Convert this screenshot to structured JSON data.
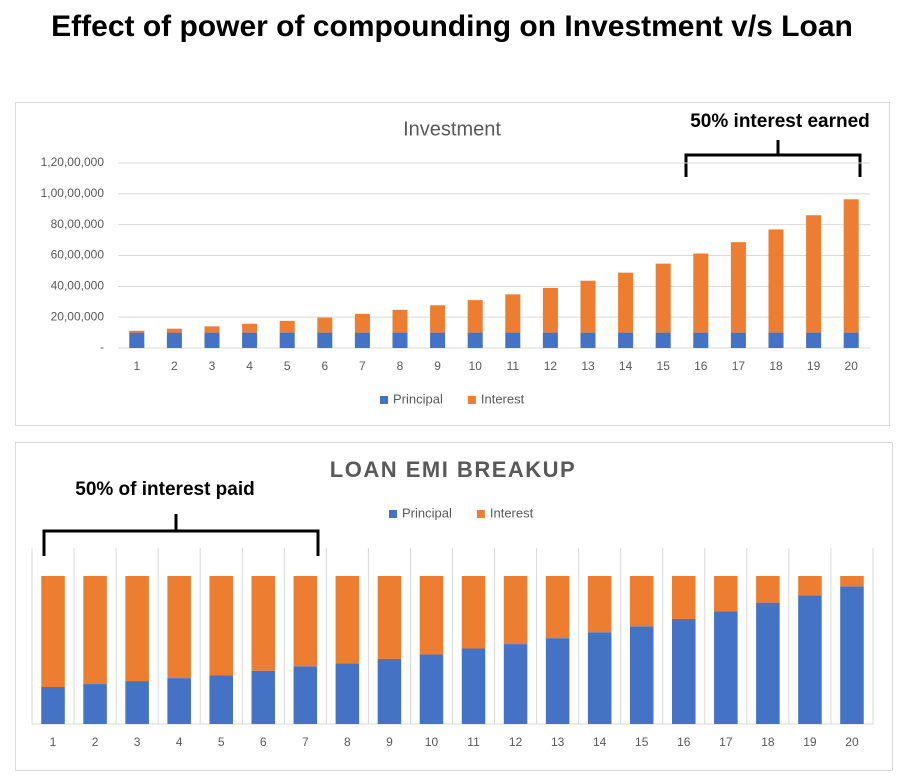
{
  "title": "Effect of power of compounding on Investment v/s Loan",
  "chart_data": [
    {
      "type": "stacked_bar",
      "title": "Investment",
      "annotation": "50% interest earned",
      "categories": [
        "1",
        "2",
        "3",
        "4",
        "5",
        "6",
        "7",
        "8",
        "9",
        "10",
        "11",
        "12",
        "13",
        "14",
        "15",
        "16",
        "17",
        "18",
        "19",
        "20"
      ],
      "series": [
        {
          "name": "Principal",
          "color": "#4472c4",
          "values": [
            1000000,
            1000000,
            1000000,
            1000000,
            1000000,
            1000000,
            1000000,
            1000000,
            1000000,
            1000000,
            1000000,
            1000000,
            1000000,
            1000000,
            1000000,
            1000000,
            1000000,
            1000000,
            1000000,
            1000000
          ]
        },
        {
          "name": "Interest",
          "color": "#ed7d31",
          "values": [
            120000,
            254000,
            405000,
            574000,
            762000,
            974000,
            1211000,
            1476000,
            1773000,
            2106000,
            2479000,
            2896000,
            3364000,
            3887000,
            4474000,
            5130000,
            5866000,
            6690000,
            7613000,
            8646000
          ]
        }
      ],
      "ylim": [
        0,
        12000000
      ],
      "yticks": [
        {
          "value": 0,
          "label": "-"
        },
        {
          "value": 2000000,
          "label": "20,00,000"
        },
        {
          "value": 4000000,
          "label": "40,00,000"
        },
        {
          "value": 6000000,
          "label": "60,00,000"
        },
        {
          "value": 8000000,
          "label": "80,00,000"
        },
        {
          "value": 10000000,
          "label": "1,00,00,000"
        },
        {
          "value": 12000000,
          "label": "1,20,00,000"
        }
      ],
      "grid": true
    },
    {
      "type": "stacked_bar",
      "title": "LOAN EMI BREAKUP",
      "annotation": "50% of interest paid",
      "categories": [
        "1",
        "2",
        "3",
        "4",
        "5",
        "6",
        "7",
        "8",
        "9",
        "10",
        "11",
        "12",
        "13",
        "14",
        "15",
        "16",
        "17",
        "18",
        "19",
        "20"
      ],
      "series": [
        {
          "name": "Principal",
          "color": "#4472c4",
          "values": [
            25,
            27,
            29,
            31,
            33,
            36,
            39,
            41,
            44,
            47,
            51,
            54,
            58,
            62,
            66,
            71,
            76,
            82,
            87,
            93
          ]
        },
        {
          "name": "Interest",
          "color": "#ed7d31",
          "values": [
            75,
            73,
            71,
            69,
            67,
            64,
            61,
            59,
            56,
            53,
            49,
            46,
            42,
            38,
            34,
            29,
            24,
            18,
            13,
            7
          ]
        }
      ],
      "ylim": [
        0,
        100
      ],
      "grid": true
    }
  ]
}
